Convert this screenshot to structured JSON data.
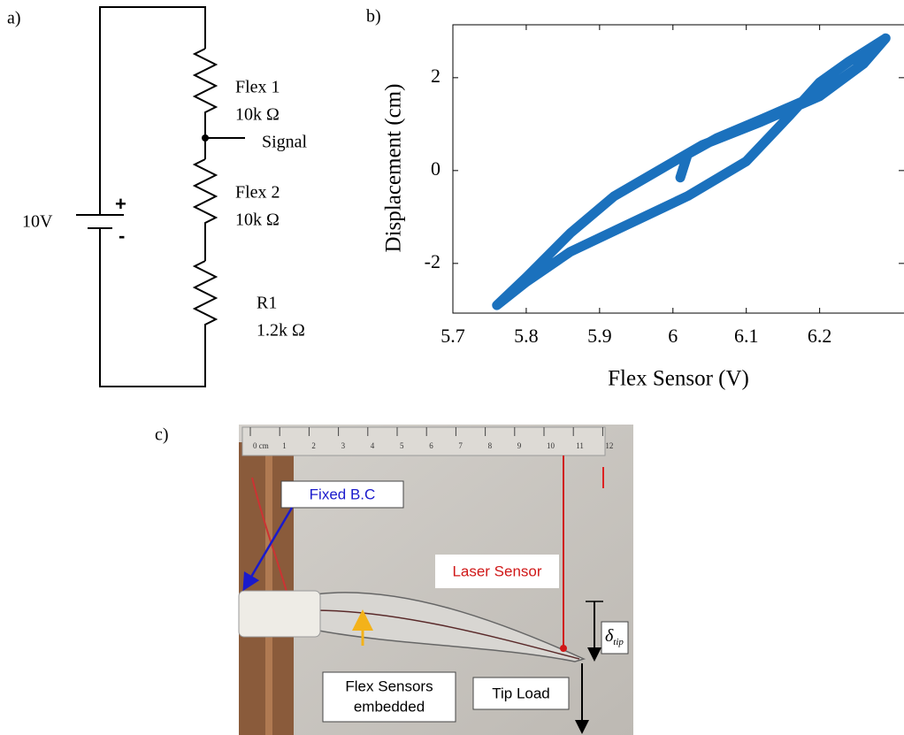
{
  "panel_a": {
    "label": "a)",
    "flex1": "Flex 1",
    "flex1_value": "10k Ω",
    "signal": "Signal",
    "flex2": "Flex 2",
    "flex2_value": "10k Ω",
    "r1": "R1",
    "r1_value": "1.2k Ω",
    "battery": "10V",
    "plus": "+",
    "minus": "-"
  },
  "chart_data": {
    "type": "line",
    "label": "b)",
    "x_label": "Flex Sensor (V)",
    "y_label": "Displacement (cm)",
    "xlim": [
      5.7,
      6.315
    ],
    "ylim": [
      -3.07,
      3.14
    ],
    "xticks": [
      5.7,
      5.8,
      5.9,
      6,
      6.1,
      6.2
    ],
    "yticks": [
      -2,
      0,
      2
    ],
    "series": [
      {
        "color": "#1b71bd",
        "x": [
          6.01,
          6.02,
          6.06,
          6.12,
          6.2,
          6.25,
          6.29,
          6.24,
          6.2,
          6.16,
          6.1,
          6.02,
          5.94,
          5.86,
          5.8,
          5.76,
          5.8,
          5.86,
          5.92,
          5.98,
          6.04,
          6.12,
          6.2,
          6.26,
          6.29
        ],
        "values": [
          -0.15,
          0.35,
          0.7,
          1.1,
          1.65,
          2.2,
          2.85,
          2.35,
          1.9,
          1.2,
          0.2,
          -0.55,
          -1.15,
          -1.75,
          -2.4,
          -2.9,
          -2.3,
          -1.35,
          -0.55,
          0.0,
          0.55,
          1.05,
          1.6,
          2.3,
          2.85
        ]
      }
    ]
  },
  "panel_c": {
    "label": "c)",
    "ruler": [
      "0 cm",
      "1",
      "2",
      "3",
      "4",
      "5",
      "6",
      "7",
      "8",
      "9",
      "10",
      "11",
      "12"
    ],
    "fixed_bc": "Fixed B.C",
    "laser_sensor": "Laser Sensor",
    "flex_sensors": [
      "Flex Sensors",
      "embedded"
    ],
    "tip_load": "Tip Load",
    "delta": "δ",
    "delta_sub": "tip"
  }
}
